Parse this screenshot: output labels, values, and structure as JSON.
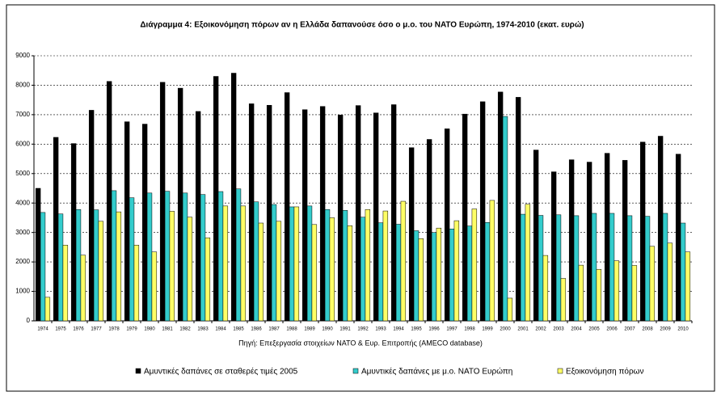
{
  "chart_data": {
    "type": "bar",
    "title": "Διάγραμμα 4: Εξοικονόμηση πόρων αν η Ελλάδα δαπανούσε όσο ο μ.ο. του ΝΑΤΟ Ευρώπη, 1974-2010 (εκατ. ευρώ)",
    "source": "Πηγή: Επεξεργασία στοιχείων ΝΑΤΟ & Ευρ. Επιτροπής (AMECO database)",
    "categories": [
      "1974",
      "1975",
      "1976",
      "1977",
      "1978",
      "1979",
      "1980",
      "1981",
      "1982",
      "1983",
      "1984",
      "1985",
      "1986",
      "1987",
      "1988",
      "1989",
      "1990",
      "1991",
      "1992",
      "1993",
      "1994",
      "1995",
      "1996",
      "1997",
      "1998",
      "1999",
      "2000",
      "2001",
      "2002",
      "2003",
      "2004",
      "2005",
      "2006",
      "2007",
      "2008",
      "2009",
      "2010"
    ],
    "series": [
      {
        "name": "Αμυντικές δαπάνες σε σταθερές τιμές 2005",
        "color": "#000000",
        "values": [
          4500,
          6230,
          6020,
          7150,
          8130,
          6760,
          6680,
          8100,
          7900,
          7110,
          8300,
          8410,
          7370,
          7320,
          7750,
          7170,
          7280,
          6990,
          7310,
          7060,
          7340,
          5880,
          6160,
          6520,
          7020,
          7440,
          7770,
          7590,
          5800,
          5060,
          5470,
          5390,
          5690,
          5450,
          6070,
          6270,
          5660
        ]
      },
      {
        "name": "Αμυντικές δαπάνες με μ.ο. ΝΑΤΟ Ευρώπη",
        "color": "#33cccc",
        "values": [
          3680,
          3630,
          3780,
          3770,
          4420,
          4180,
          4340,
          4400,
          4340,
          4290,
          4390,
          4480,
          4040,
          3950,
          3870,
          3900,
          3780,
          3750,
          3520,
          3330,
          3280,
          3060,
          3000,
          3120,
          3220,
          3340,
          6940,
          3620,
          3580,
          3600,
          3570,
          3650,
          3650,
          3570,
          3550,
          3650,
          3320
        ]
      },
      {
        "name": "Εξοικονόμηση πόρων",
        "color": "#ffff66",
        "values": [
          800,
          2570,
          2230,
          3380,
          3700,
          2570,
          2340,
          3720,
          3520,
          2820,
          3900,
          3900,
          3320,
          3380,
          3870,
          3270,
          3500,
          3230,
          3780,
          3730,
          4060,
          2790,
          3150,
          3400,
          3800,
          4090,
          770,
          3960,
          2220,
          1440,
          1890,
          1750,
          2040,
          1880,
          2530,
          2640,
          2340
        ]
      }
    ],
    "ylim": [
      0,
      9000
    ],
    "yticks": [
      0,
      1000,
      2000,
      3000,
      4000,
      5000,
      6000,
      7000,
      8000,
      9000
    ],
    "grid": true
  }
}
